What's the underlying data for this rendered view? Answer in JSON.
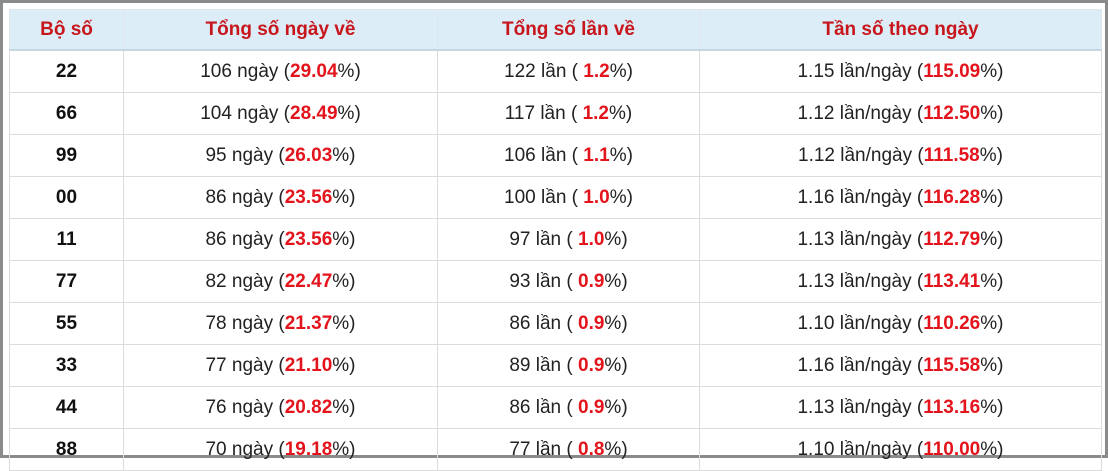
{
  "table": {
    "header": [
      "Bộ số",
      "Tổng số ngày về",
      "Tổng số lần về",
      "Tần số theo ngày"
    ],
    "rows": [
      [
        [
          "22"
        ],
        [
          "106 ngày (",
          "29.04",
          "%)"
        ],
        [
          "122 lần ( ",
          "1.2",
          "%)"
        ],
        [
          "1.15 lần/ngày (",
          "115.09",
          "%)"
        ]
      ],
      [
        [
          "66"
        ],
        [
          "104 ngày (",
          "28.49",
          "%)"
        ],
        [
          "117 lần ( ",
          "1.2",
          "%)"
        ],
        [
          "1.12 lần/ngày (",
          "112.50",
          "%)"
        ]
      ],
      [
        [
          "99"
        ],
        [
          "95 ngày (",
          "26.03",
          "%)"
        ],
        [
          "106 lần ( ",
          "1.1",
          "%)"
        ],
        [
          "1.12 lần/ngày (",
          "111.58",
          "%)"
        ]
      ],
      [
        [
          "00"
        ],
        [
          "86 ngày (",
          "23.56",
          "%)"
        ],
        [
          "100 lần ( ",
          "1.0",
          "%)"
        ],
        [
          "1.16 lần/ngày (",
          "116.28",
          "%)"
        ]
      ],
      [
        [
          "11"
        ],
        [
          "86 ngày (",
          "23.56",
          "%)"
        ],
        [
          "97 lần ( ",
          "1.0",
          "%)"
        ],
        [
          "1.13 lần/ngày (",
          "112.79",
          "%)"
        ]
      ],
      [
        [
          "77"
        ],
        [
          "82 ngày (",
          "22.47",
          "%)"
        ],
        [
          "93 lần ( ",
          "0.9",
          "%)"
        ],
        [
          "1.13 lần/ngày (",
          "113.41",
          "%)"
        ]
      ],
      [
        [
          "55"
        ],
        [
          "78 ngày (",
          "21.37",
          "%)"
        ],
        [
          "86 lần ( ",
          "0.9",
          "%)"
        ],
        [
          "1.10 lần/ngày (",
          "110.26",
          "%)"
        ]
      ],
      [
        [
          "33"
        ],
        [
          "77 ngày (",
          "21.10",
          "%)"
        ],
        [
          "89 lần ( ",
          "0.9",
          "%)"
        ],
        [
          "1.16 lần/ngày (",
          "115.58",
          "%)"
        ]
      ],
      [
        [
          "44"
        ],
        [
          "76 ngày (",
          "20.82",
          "%)"
        ],
        [
          "86 lần ( ",
          "0.9",
          "%)"
        ],
        [
          "1.13 lần/ngày (",
          "113.16",
          "%)"
        ]
      ],
      [
        [
          "88"
        ],
        [
          "70 ngày (",
          "19.18",
          "%)"
        ],
        [
          "77 lần ( ",
          "0.8",
          "%)"
        ],
        [
          "1.10 lần/ngày (",
          "110.00",
          "%)"
        ]
      ]
    ]
  }
}
